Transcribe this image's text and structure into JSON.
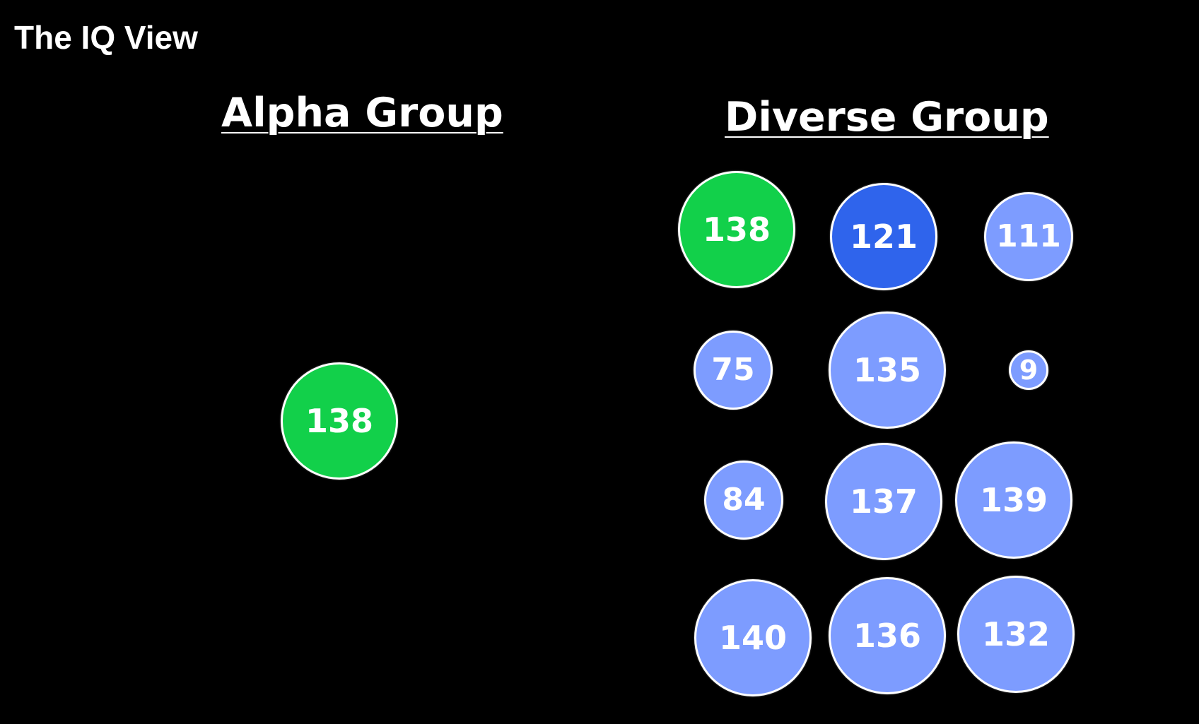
{
  "title": "The IQ View",
  "colors": {
    "background": "#000000",
    "text": "#ffffff",
    "green": "#12d04a",
    "dark_blue": "#2f64ec",
    "light_blue": "#7d9cff",
    "border": "#ffffff"
  },
  "groups": {
    "alpha": {
      "heading": "Alpha Group",
      "members": [
        {
          "iq": "138",
          "color": "green"
        }
      ]
    },
    "diverse": {
      "heading": "Diverse Group",
      "members": [
        {
          "iq": "138",
          "color": "green"
        },
        {
          "iq": "121",
          "color": "dark_blue"
        },
        {
          "iq": "111",
          "color": "light_blue"
        },
        {
          "iq": "75",
          "color": "light_blue"
        },
        {
          "iq": "135",
          "color": "light_blue"
        },
        {
          "iq": "9",
          "color": "light_blue"
        },
        {
          "iq": "84",
          "color": "light_blue"
        },
        {
          "iq": "137",
          "color": "light_blue"
        },
        {
          "iq": "139",
          "color": "light_blue"
        },
        {
          "iq": "140",
          "color": "light_blue"
        },
        {
          "iq": "136",
          "color": "light_blue"
        },
        {
          "iq": "132",
          "color": "light_blue"
        }
      ]
    }
  }
}
